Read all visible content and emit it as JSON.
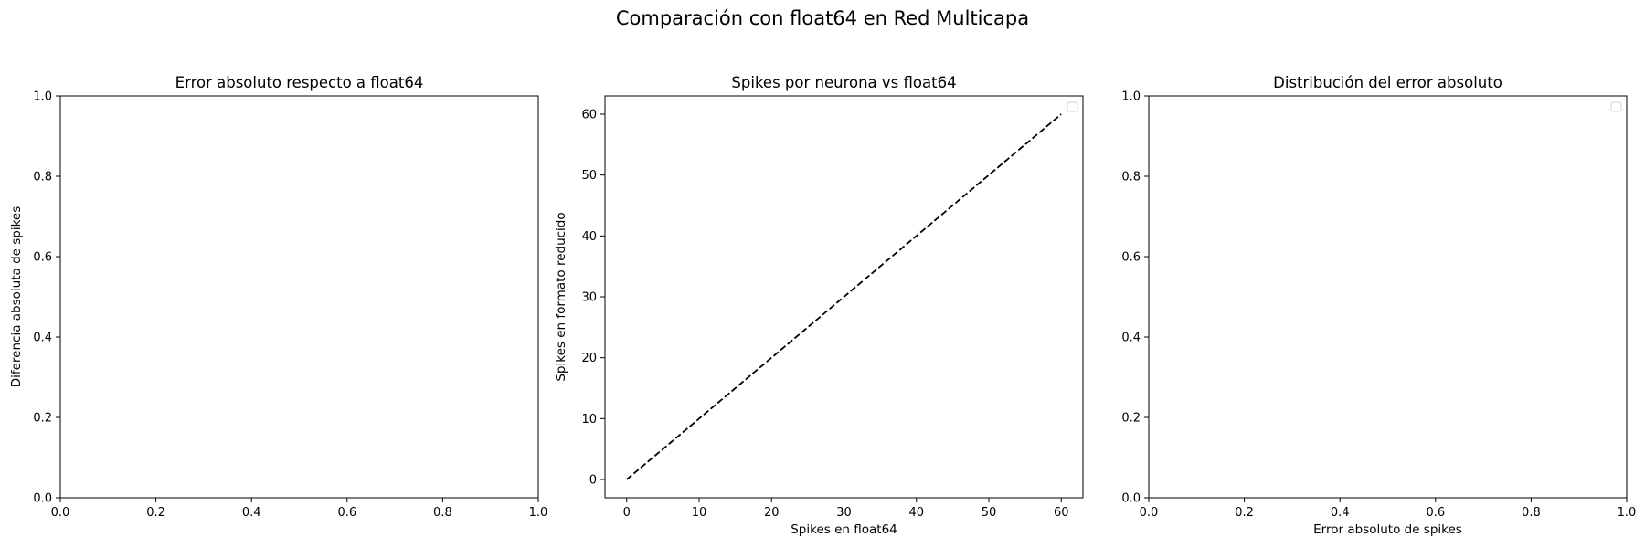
{
  "figure": {
    "title": "Comparación con float64 en Red Multicapa"
  },
  "chart_data": [
    {
      "type": "line",
      "title": "Error absoluto respecto a float64",
      "xlabel": "",
      "ylabel": "Diferencia absoluta de spikes",
      "xlim": [
        0,
        1
      ],
      "ylim": [
        0,
        1
      ],
      "xticks": [
        "0.0",
        "0.2",
        "0.4",
        "0.6",
        "0.8",
        "1.0"
      ],
      "yticks": [
        "0.0",
        "0.2",
        "0.4",
        "0.6",
        "0.8",
        "1.0"
      ],
      "series": [],
      "legend": false,
      "grid": false
    },
    {
      "type": "scatter",
      "title": "Spikes por neurona vs float64",
      "xlabel": "Spikes en float64",
      "ylabel": "Spikes en formato reducido",
      "xlim": [
        -3,
        63
      ],
      "ylim": [
        -3,
        63
      ],
      "xticks": [
        "0",
        "10",
        "20",
        "30",
        "40",
        "50",
        "60"
      ],
      "yticks": [
        "0",
        "10",
        "20",
        "30",
        "40",
        "50",
        "60"
      ],
      "series": [
        {
          "style": "dashed",
          "color": "#000000",
          "x": [
            0,
            60
          ],
          "y": [
            0,
            60
          ]
        }
      ],
      "legend": "top-right",
      "legend_entries": [],
      "grid": false
    },
    {
      "type": "bar",
      "title": "Distribución del error absoluto",
      "xlabel": "Error absoluto de spikes",
      "ylabel": "",
      "xlim": [
        0,
        1
      ],
      "ylim": [
        0,
        1
      ],
      "xticks": [
        "0.0",
        "0.2",
        "0.4",
        "0.6",
        "0.8",
        "1.0"
      ],
      "yticks": [
        "0.0",
        "0.2",
        "0.4",
        "0.6",
        "0.8",
        "1.0"
      ],
      "series": [],
      "legend": "top-right",
      "legend_entries": [],
      "grid": false
    }
  ]
}
